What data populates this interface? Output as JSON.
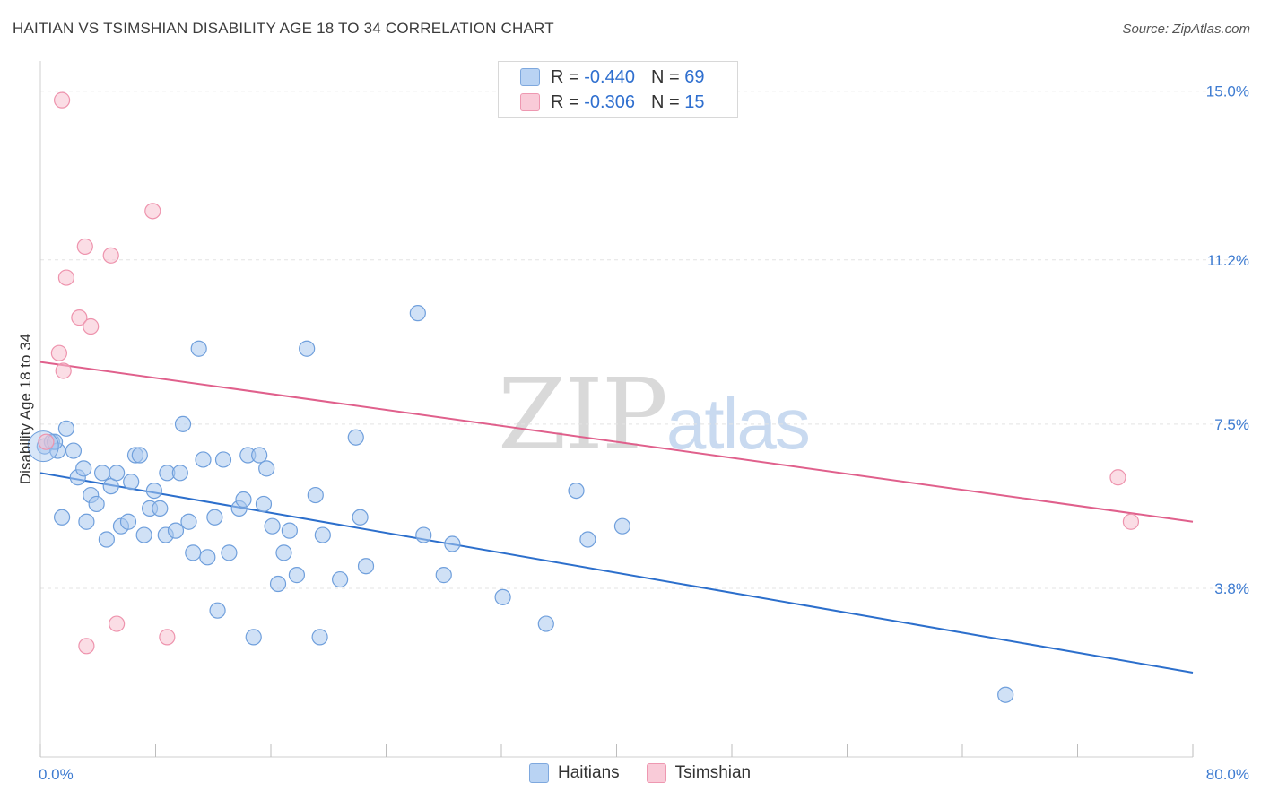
{
  "header": {
    "title": "HAITIAN VS TSIMSHIAN DISABILITY AGE 18 TO 34 CORRELATION CHART",
    "source": "Source: ZipAtlas.com"
  },
  "watermark": {
    "zip": "ZIP",
    "atlas": "atlas"
  },
  "legend": {
    "rows": [
      {
        "r_label": "R = ",
        "r_value": "-0.440",
        "n_label": "N = ",
        "n_value": "69"
      },
      {
        "r_label": "R = ",
        "r_value": "-0.306",
        "n_label": "N = ",
        "n_value": "15"
      }
    ]
  },
  "bottom_legend": {
    "series1": "Haitians",
    "series2": "Tsimshian"
  },
  "colors": {
    "haitians_fill": "#a9c8ef",
    "haitians_stroke": "#6f9fdc",
    "haitians_line": "#2c6fcc",
    "tsimshian_fill": "#f7c1d0",
    "tsimshian_stroke": "#ee93ad",
    "tsimshian_line": "#e0608c",
    "tick_text": "#3d7bd1",
    "grid": "#e3e3e3"
  },
  "chart_data": {
    "type": "scatter",
    "title": "HAITIAN VS TSIMSHIAN DISABILITY AGE 18 TO 34 CORRELATION CHART",
    "xlabel": "",
    "ylabel": "Disability Age 18 to 34",
    "xlim": [
      0,
      80
    ],
    "ylim": [
      0,
      15.5
    ],
    "x_tick_labels": [
      "0.0%",
      "80.0%"
    ],
    "y_ticks": [
      3.8,
      7.5,
      11.2,
      15.0
    ],
    "y_tick_labels": [
      "3.8%",
      "7.5%",
      "11.2%",
      "15.0%"
    ],
    "grid": true,
    "legend_position": "top-center",
    "series": [
      {
        "name": "Haitians",
        "r": -0.44,
        "n": 69,
        "trend": {
          "x": [
            0,
            80
          ],
          "y": [
            6.4,
            1.9
          ]
        },
        "points": [
          [
            0.3,
            7.0
          ],
          [
            0.8,
            7.1
          ],
          [
            1.2,
            6.9
          ],
          [
            1.8,
            7.4
          ],
          [
            2.3,
            6.9
          ],
          [
            1.5,
            5.4
          ],
          [
            2.6,
            6.3
          ],
          [
            3.0,
            6.5
          ],
          [
            3.2,
            5.3
          ],
          [
            3.5,
            5.9
          ],
          [
            3.9,
            5.7
          ],
          [
            4.3,
            6.4
          ],
          [
            4.6,
            4.9
          ],
          [
            4.9,
            6.1
          ],
          [
            5.3,
            6.4
          ],
          [
            5.6,
            5.2
          ],
          [
            6.1,
            5.3
          ],
          [
            6.3,
            6.2
          ],
          [
            6.6,
            6.8
          ],
          [
            6.9,
            6.8
          ],
          [
            7.2,
            5.0
          ],
          [
            7.6,
            5.6
          ],
          [
            7.9,
            6.0
          ],
          [
            8.3,
            5.6
          ],
          [
            8.7,
            5.0
          ],
          [
            8.8,
            6.4
          ],
          [
            9.4,
            5.1
          ],
          [
            9.7,
            6.4
          ],
          [
            9.9,
            7.5
          ],
          [
            10.3,
            5.3
          ],
          [
            10.6,
            4.6
          ],
          [
            11.0,
            9.2
          ],
          [
            11.3,
            6.7
          ],
          [
            11.6,
            4.5
          ],
          [
            12.1,
            5.4
          ],
          [
            12.3,
            3.3
          ],
          [
            12.7,
            6.7
          ],
          [
            13.1,
            4.6
          ],
          [
            13.8,
            5.6
          ],
          [
            14.1,
            5.8
          ],
          [
            14.4,
            6.8
          ],
          [
            14.8,
            2.7
          ],
          [
            15.2,
            6.8
          ],
          [
            15.5,
            5.7
          ],
          [
            15.7,
            6.5
          ],
          [
            16.1,
            5.2
          ],
          [
            16.5,
            3.9
          ],
          [
            16.9,
            4.6
          ],
          [
            17.3,
            5.1
          ],
          [
            17.8,
            4.1
          ],
          [
            18.5,
            9.2
          ],
          [
            19.1,
            5.9
          ],
          [
            19.4,
            2.7
          ],
          [
            19.6,
            5.0
          ],
          [
            20.8,
            4.0
          ],
          [
            21.9,
            7.2
          ],
          [
            22.2,
            5.4
          ],
          [
            22.6,
            4.3
          ],
          [
            26.2,
            10.0
          ],
          [
            26.6,
            5.0
          ],
          [
            28.0,
            4.1
          ],
          [
            28.6,
            4.8
          ],
          [
            32.1,
            3.6
          ],
          [
            35.1,
            3.0
          ],
          [
            37.2,
            6.0
          ],
          [
            38.0,
            4.9
          ],
          [
            40.4,
            5.2
          ],
          [
            67.0,
            1.4
          ],
          [
            1.0,
            7.1
          ]
        ]
      },
      {
        "name": "Tsimshian",
        "r": -0.306,
        "n": 15,
        "trend": {
          "x": [
            0,
            80
          ],
          "y": [
            8.9,
            5.3
          ]
        },
        "points": [
          [
            0.4,
            7.1
          ],
          [
            1.3,
            9.1
          ],
          [
            1.6,
            8.7
          ],
          [
            1.5,
            14.8
          ],
          [
            1.8,
            10.8
          ],
          [
            2.7,
            9.9
          ],
          [
            3.1,
            11.5
          ],
          [
            3.5,
            9.7
          ],
          [
            4.9,
            11.3
          ],
          [
            3.2,
            2.5
          ],
          [
            5.3,
            3.0
          ],
          [
            7.8,
            12.3
          ],
          [
            8.8,
            2.7
          ],
          [
            74.8,
            6.3
          ],
          [
            75.7,
            5.3
          ]
        ]
      }
    ]
  }
}
